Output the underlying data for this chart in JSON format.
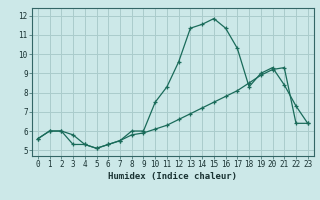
{
  "title": "",
  "xlabel": "Humidex (Indice chaleur)",
  "ylabel": "",
  "background_color": "#cce8e8",
  "grid_color": "#aacccc",
  "line_color": "#1a6b5a",
  "x_ticks": [
    0,
    1,
    2,
    3,
    4,
    5,
    6,
    7,
    8,
    9,
    10,
    11,
    12,
    13,
    14,
    15,
    16,
    17,
    18,
    19,
    20,
    21,
    22,
    23
  ],
  "y_ticks": [
    5,
    6,
    7,
    8,
    9,
    10,
    11,
    12
  ],
  "xlim": [
    -0.5,
    23.5
  ],
  "ylim": [
    4.7,
    12.4
  ],
  "line1_x": [
    0,
    1,
    2,
    3,
    4,
    5,
    6,
    7,
    8,
    9,
    10,
    11,
    12,
    13,
    14,
    15,
    16,
    17,
    18,
    19,
    20,
    21,
    22,
    23
  ],
  "line1_y": [
    5.6,
    6.0,
    6.0,
    5.8,
    5.3,
    5.1,
    5.3,
    5.5,
    6.0,
    6.0,
    7.5,
    8.3,
    9.6,
    11.35,
    11.55,
    11.85,
    11.35,
    10.3,
    8.3,
    9.0,
    9.3,
    8.4,
    7.3,
    6.4
  ],
  "line2_x": [
    0,
    1,
    2,
    3,
    4,
    5,
    6,
    7,
    8,
    9,
    10,
    11,
    12,
    13,
    14,
    15,
    16,
    17,
    18,
    19,
    20,
    21,
    22,
    23
  ],
  "line2_y": [
    5.6,
    6.0,
    6.0,
    5.3,
    5.3,
    5.1,
    5.3,
    5.5,
    5.8,
    5.9,
    6.1,
    6.3,
    6.6,
    6.9,
    7.2,
    7.5,
    7.8,
    8.1,
    8.5,
    8.9,
    9.2,
    9.3,
    6.4,
    6.4
  ],
  "tick_fontsize": 5.5,
  "label_fontsize": 6.5
}
